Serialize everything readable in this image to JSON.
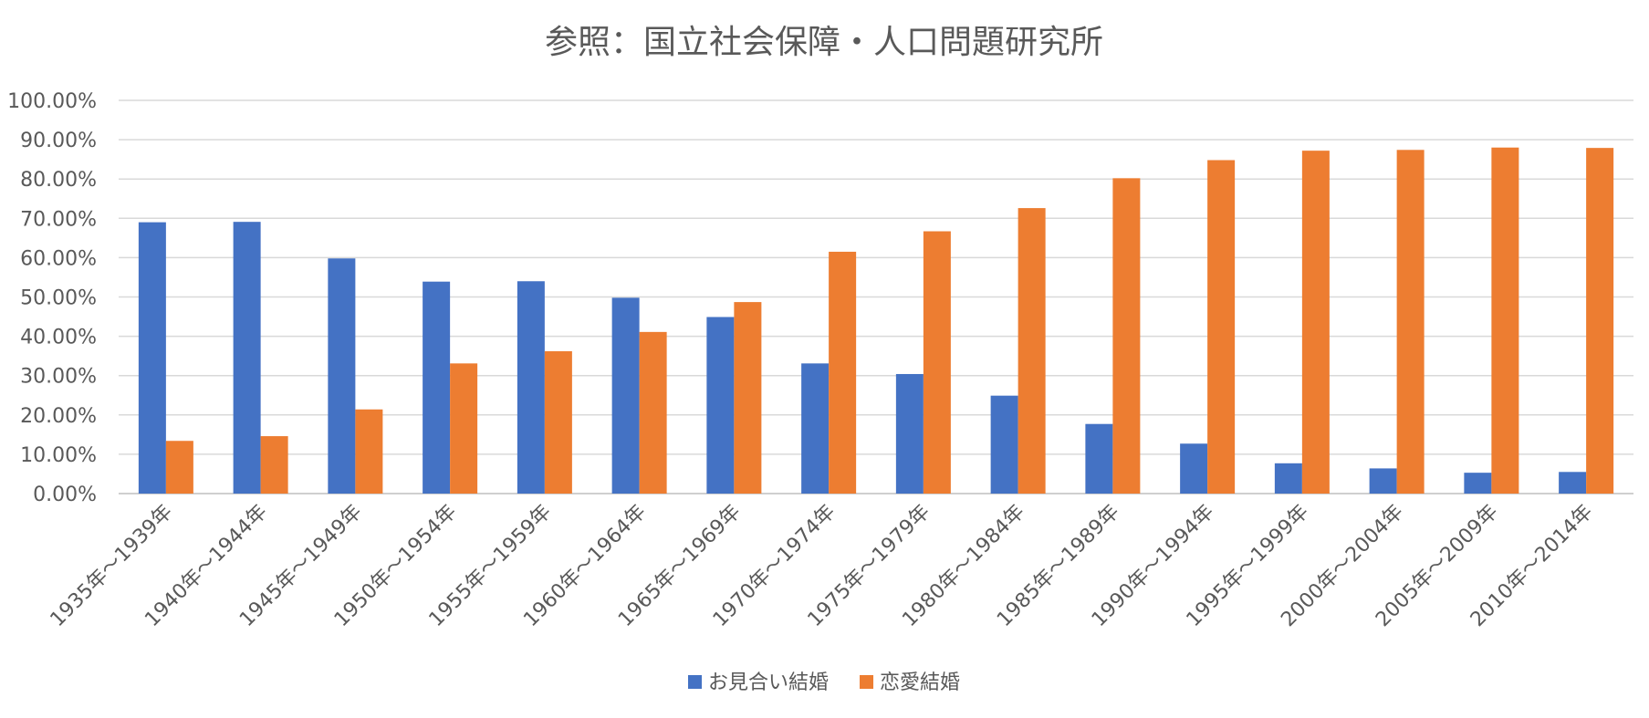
{
  "chart_data": {
    "type": "bar",
    "title": "参照：国立社会保障・人口問題研究所",
    "categories": [
      "1935年～1939年",
      "1940年～1944年",
      "1945年～1949年",
      "1950年～1954年",
      "1955年～1959年",
      "1960年～1964年",
      "1965年～1969年",
      "1970年～1974年",
      "1975年～1979年",
      "1980年～1984年",
      "1985年～1989年",
      "1990年～1994年",
      "1995年～1999年",
      "2000年～2004年",
      "2005年～2009年",
      "2010年～2014年"
    ],
    "series": [
      {
        "name": "お見合い結婚",
        "color": "#4472c4",
        "values": [
          69.0,
          69.1,
          59.8,
          53.9,
          54.0,
          49.8,
          44.9,
          33.1,
          30.4,
          24.9,
          17.7,
          12.7,
          7.7,
          6.4,
          5.3,
          5.5
        ]
      },
      {
        "name": "恋愛結婚",
        "color": "#ed7d31",
        "values": [
          13.4,
          14.6,
          21.4,
          33.1,
          36.2,
          41.1,
          48.7,
          61.5,
          66.7,
          72.6,
          80.2,
          84.8,
          87.2,
          87.4,
          88.0,
          87.9
        ]
      }
    ],
    "ylim": [
      0,
      100
    ],
    "yticks": [
      "0.00%",
      "10.00%",
      "20.00%",
      "30.00%",
      "40.00%",
      "50.00%",
      "60.00%",
      "70.00%",
      "80.00%",
      "90.00%",
      "100.00%"
    ],
    "grid": true,
    "legend_position": "bottom"
  }
}
